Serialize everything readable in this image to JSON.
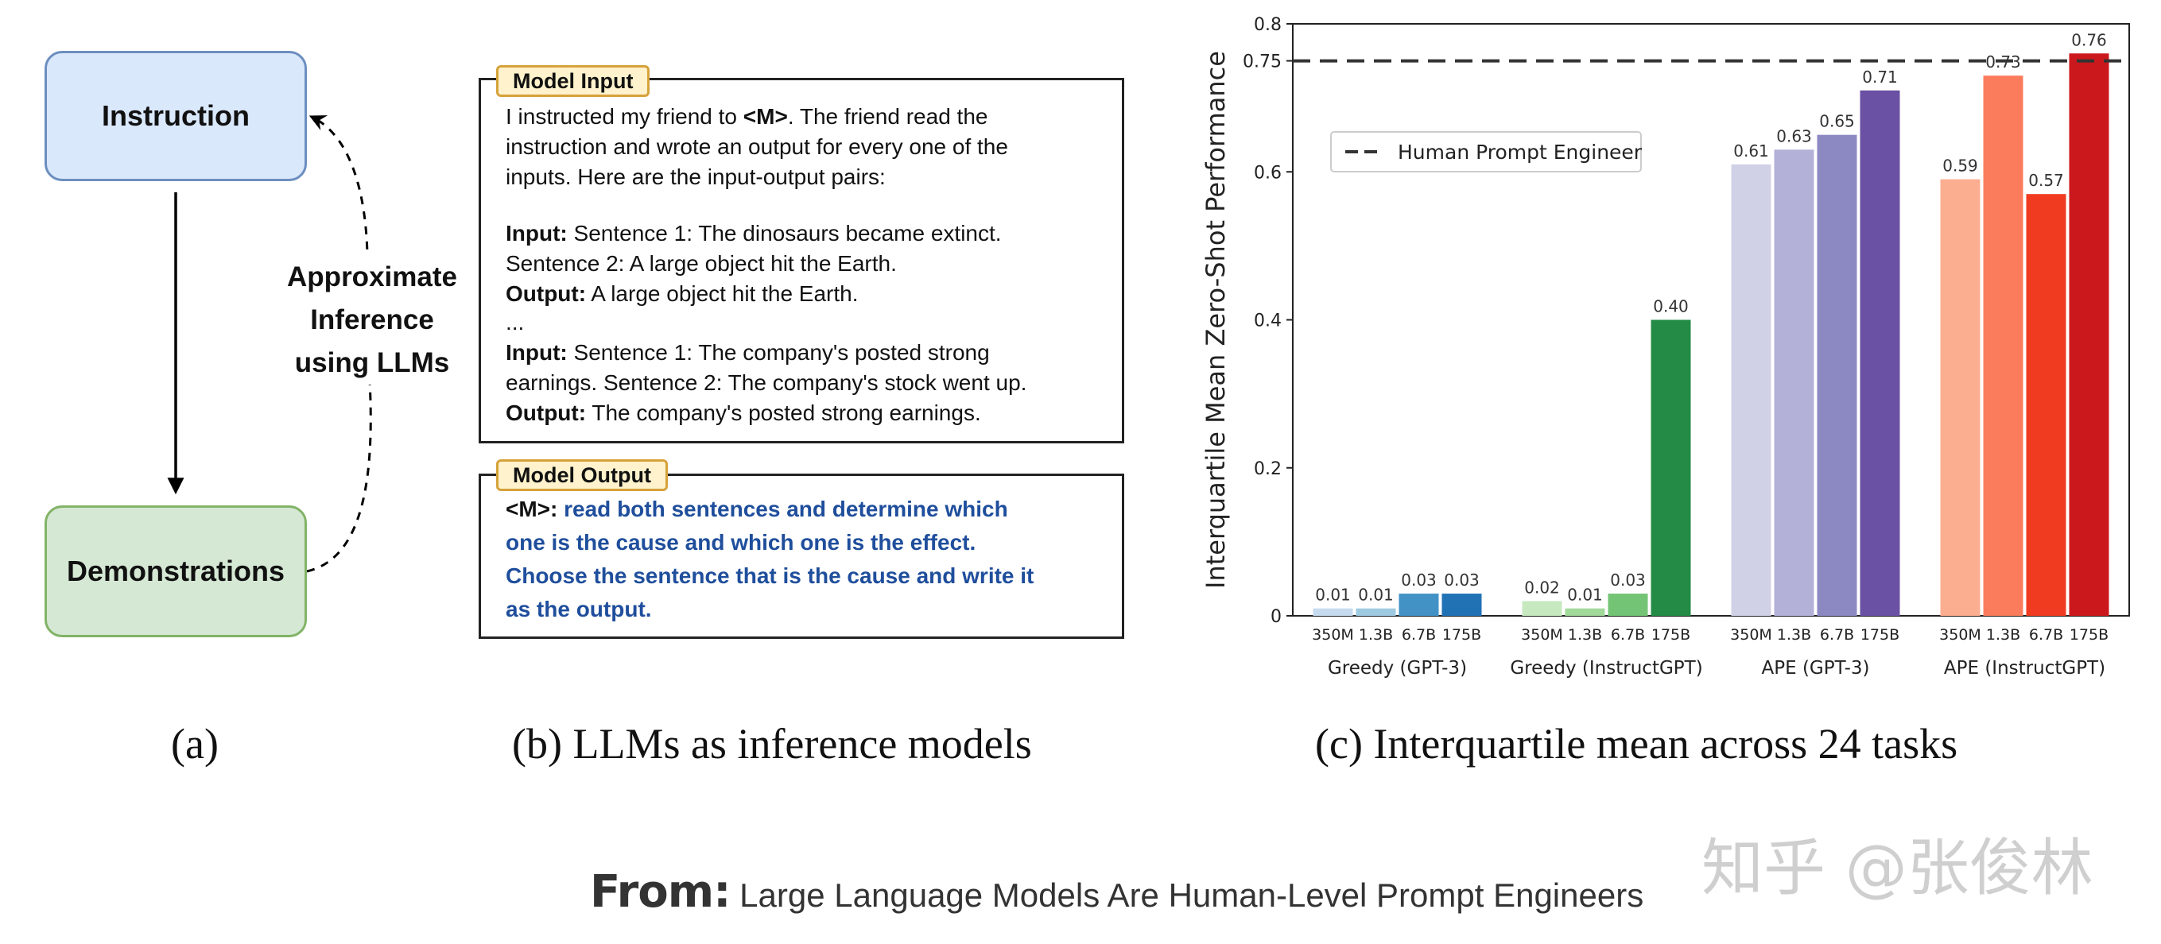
{
  "panel_a": {
    "instruction_label": "Instruction",
    "demonstrations_label": "Demonstrations",
    "approx_lines": [
      "Approximate",
      "Inference",
      "using LLMs"
    ],
    "caption": "(a)"
  },
  "panel_b": {
    "input_tag": "Model Input",
    "input_intro_1_pre": "I instructed my friend to ",
    "input_intro_1_m": "<M>",
    "input_intro_1_post": ". The friend read the",
    "input_intro_2": "instruction and wrote an output for every one of the",
    "input_intro_3": "inputs. Here are the input-output pairs:",
    "input_label": "Input:",
    "output_label": "Output:",
    "example1_input_1": " Sentence 1: The dinosaurs became extinct.",
    "example1_input_2": "Sentence 2: A large object hit the Earth.",
    "example1_output": " A large object hit the Earth.",
    "ellipsis": "...",
    "example2_input_1": " Sentence 1: The company's posted strong",
    "example2_input_2": "earnings. Sentence 2: The company's stock went up.",
    "example2_output": " The company's posted strong earnings.",
    "output_tag": "Model Output",
    "output_m": "<M>:",
    "output_lines": [
      " read both sentences and determine which",
      "one is the cause and which one is the effect.",
      "Choose the sentence that is the cause and write it",
      "as the output."
    ],
    "caption": "(b) LLMs as inference models"
  },
  "panel_c": {
    "caption": "(c) Interquartile mean across 24 tasks"
  },
  "chart_data": {
    "type": "bar",
    "title": "",
    "xlabel": "",
    "ylabel": "Interquartile Mean Zero-Shot Performance",
    "ylim": [
      0,
      0.8
    ],
    "yticks": [
      0,
      0.2,
      0.4,
      0.6,
      0.75,
      0.8
    ],
    "ytick_labels": [
      "0",
      "0.2",
      "0.4",
      "0.6",
      "0.75",
      "0.8"
    ],
    "categories": [
      "350M",
      "1.3B",
      "6.7B",
      "175B"
    ],
    "groups": [
      {
        "name": "Greedy (GPT-3)",
        "values": [
          0.01,
          0.01,
          0.03,
          0.03
        ],
        "labels": [
          "0.01",
          "0.01",
          "0.03",
          "0.03"
        ],
        "colors": [
          "#c6dbef",
          "#9ecae1",
          "#4292c6",
          "#2171b5"
        ]
      },
      {
        "name": "Greedy (InstructGPT)",
        "values": [
          0.02,
          0.01,
          0.03,
          0.4
        ],
        "labels": [
          "0.02",
          "0.01",
          "0.03",
          "0.40"
        ],
        "colors": [
          "#c7e9c0",
          "#a1d99b",
          "#74c476",
          "#238b45"
        ]
      },
      {
        "name": "APE (GPT-3)",
        "values": [
          0.61,
          0.63,
          0.65,
          0.71
        ],
        "labels": [
          "0.61",
          "0.63",
          "0.65",
          "0.71"
        ],
        "colors": [
          "#d0d1e6",
          "#b3b1d8",
          "#8c89c2",
          "#6a51a3"
        ]
      },
      {
        "name": "APE (InstructGPT)",
        "values": [
          0.59,
          0.73,
          0.57,
          0.76
        ],
        "labels": [
          "0.59",
          "0.73",
          "0.57",
          "0.76"
        ],
        "colors": [
          "#fcae91",
          "#fb7c5c",
          "#f03b20",
          "#cb181d"
        ]
      }
    ],
    "reference_line": {
      "name": "Human Prompt Engineer",
      "value": 0.75,
      "style": "dashed"
    },
    "legend_position": "top-left",
    "grid": false
  },
  "footer": {
    "from_label": "From:",
    "reference": " Large Language Models Are Human-Level Prompt Engineers",
    "watermark": "知乎 @张俊林"
  }
}
